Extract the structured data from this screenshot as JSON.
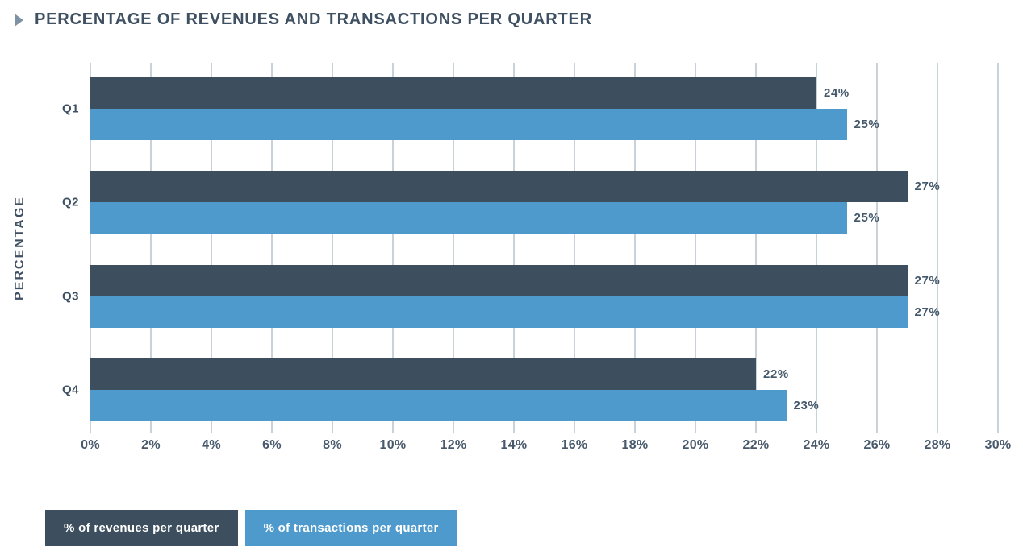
{
  "header": {
    "title": "PERCENTAGE OF REVENUES AND TRANSACTIONS PER QUARTER",
    "icon": "play-triangle-icon"
  },
  "chart_data": {
    "type": "bar",
    "orientation": "horizontal",
    "title": "PERCENTAGE OF REVENUES AND TRANSACTIONS PER QUARTER",
    "xlabel": "",
    "ylabel": "PERCENTAGE",
    "categories": [
      "Q1",
      "Q2",
      "Q3",
      "Q4"
    ],
    "series": [
      {
        "key": "revenues",
        "name": "% of revenues per quarter",
        "color": "#3d4e5e",
        "values": [
          24,
          27,
          27,
          22
        ],
        "labels": [
          "24%",
          "27%",
          "27%",
          "22%"
        ]
      },
      {
        "key": "transactions",
        "name": "% of transactions per quarter",
        "color": "#4e9acd",
        "values": [
          25,
          25,
          27,
          23
        ],
        "labels": [
          "25%",
          "25%",
          "27%",
          "23%"
        ]
      }
    ],
    "x_axis": {
      "min": 0,
      "max": 30,
      "step": 2,
      "suffix": "%",
      "tick_labels": [
        "0%",
        "2%",
        "4%",
        "6%",
        "8%",
        "10%",
        "12%",
        "14%",
        "16%",
        "18%",
        "20%",
        "22%",
        "24%",
        "26%",
        "28%",
        "30%"
      ]
    },
    "grid": "vertical",
    "legend_position": "bottom-left"
  },
  "colors": {
    "background": "#ffffff",
    "title": "#3e5062",
    "axis_text": "#47596b",
    "grid": "#c9d1d9",
    "value_label": "#44586b",
    "icon": "#7d93a4",
    "legend_text": "#ffffff"
  }
}
